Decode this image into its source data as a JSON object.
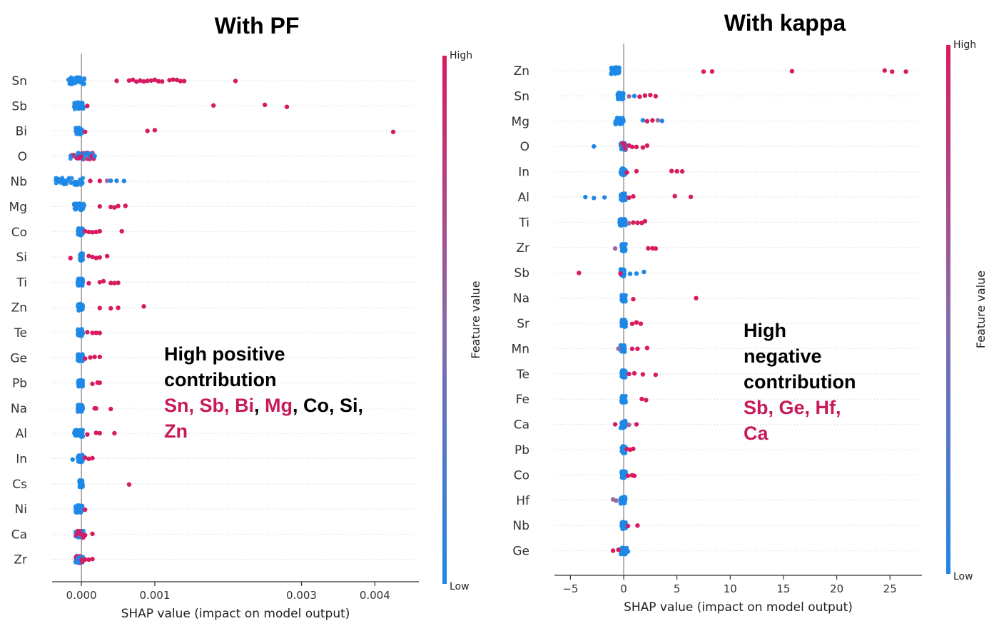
{
  "colors": {
    "low": "#1e88e5",
    "high": "#d81b60",
    "mid": "#9a6a9e",
    "axis": "#333333",
    "zero_line": "#999999",
    "grid": "#cccccc",
    "highlight": "#c8195a"
  },
  "panels": [
    {
      "title": "With PF",
      "annotation": {
        "line1": "High positive",
        "line2": "contribution",
        "hl1": "Sn, Sb, Bi",
        "sep1": ", ",
        "hl2": "Mg",
        "plain": ", Co, Si,",
        "hl3": "Zn"
      }
    },
    {
      "title": "With kappa",
      "annotation": {
        "line1": "High",
        "line2": "negative",
        "line3": "contribution",
        "hl1": "Sb, Ge, Hf,",
        "hl2": "Ca"
      }
    }
  ],
  "chart_data": [
    {
      "type": "scatter",
      "subtype": "shap-beeswarm",
      "title": "With PF",
      "xlabel": "SHAP value (impact on model output)",
      "colorbar_label": "Feature value",
      "colorbar_high": "High",
      "colorbar_low": "Low",
      "xlim": [
        -0.0004,
        0.0046
      ],
      "xticks": [
        0.0,
        0.001,
        0.003,
        0.004
      ],
      "xtick_labels": [
        "0.000",
        "0.001",
        "0.003",
        "0.004"
      ],
      "features": [
        "Sn",
        "Sb",
        "Bi",
        "O",
        "Nb",
        "Mg",
        "Co",
        "Si",
        "Ti",
        "Zn",
        "Te",
        "Ge",
        "Pb",
        "Na",
        "Al",
        "In",
        "Cs",
        "Ni",
        "Ca",
        "Zr"
      ],
      "spread": [
        [
          -0.00018,
          5e-05
        ],
        [
          -0.0001,
          3e-05
        ],
        [
          -8e-05,
          1e-05
        ],
        [
          -0.00015,
          0.00018
        ],
        [
          -0.00035,
          2e-05
        ],
        [
          -0.0001,
          4e-05
        ],
        [
          -5e-05,
          2e-05
        ],
        [
          -2e-05,
          2e-05
        ],
        [
          -5e-05,
          2e-05
        ],
        [
          -5e-05,
          2e-05
        ],
        [
          -5e-05,
          2e-05
        ],
        [
          -5e-05,
          2e-05
        ],
        [
          -5e-05,
          2e-05
        ],
        [
          -5e-05,
          2e-05
        ],
        [
          -0.0001,
          3e-05
        ],
        [
          -5e-05,
          2e-05
        ],
        [
          -3e-05,
          2e-05
        ],
        [
          -8e-05,
          2e-05
        ],
        [
          -8e-05,
          3e-05
        ],
        [
          -8e-05,
          2e-05
        ]
      ],
      "spread_color": [
        "low",
        "low",
        "low",
        "mixed",
        "low",
        "low",
        "low",
        "low",
        "low",
        "low",
        "low",
        "low",
        "low",
        "low",
        "low",
        "low",
        "low",
        "low",
        "mixed",
        "mixed"
      ],
      "outliers": [
        [
          [
            0.00048,
            "high"
          ],
          [
            0.00065,
            "high"
          ],
          [
            0.0007,
            "high"
          ],
          [
            0.00075,
            "high"
          ],
          [
            0.0008,
            "high"
          ],
          [
            0.00085,
            "high"
          ],
          [
            0.0009,
            "high"
          ],
          [
            0.00095,
            "high"
          ],
          [
            0.001,
            "high"
          ],
          [
            0.00105,
            "high"
          ],
          [
            0.0011,
            "high"
          ],
          [
            0.0012,
            "high"
          ],
          [
            0.00125,
            "high"
          ],
          [
            0.0013,
            "high"
          ],
          [
            0.00135,
            "high"
          ],
          [
            0.0014,
            "high"
          ],
          [
            0.0021,
            "high"
          ]
        ],
        [
          [
            8e-05,
            "high"
          ],
          [
            0.0018,
            "high"
          ],
          [
            0.0025,
            "high"
          ],
          [
            0.0028,
            "high"
          ]
        ],
        [
          [
            5e-05,
            "high"
          ],
          [
            0.0009,
            "high"
          ],
          [
            0.001,
            "high"
          ],
          [
            0.00425,
            "high"
          ]
        ],
        [
          [
            0.00014,
            "high"
          ],
          [
            0.00018,
            "low"
          ]
        ],
        [
          [
            0.00012,
            "high"
          ],
          [
            0.00025,
            "high"
          ],
          [
            0.00035,
            "mid"
          ],
          [
            0.0004,
            "low"
          ],
          [
            0.00048,
            "low"
          ],
          [
            0.00058,
            "low"
          ]
        ],
        [
          [
            0.00025,
            "high"
          ],
          [
            0.0004,
            "high"
          ],
          [
            0.00045,
            "high"
          ],
          [
            0.0005,
            "high"
          ],
          [
            0.0006,
            "high"
          ]
        ],
        [
          [
            5e-05,
            "high"
          ],
          [
            0.0001,
            "high"
          ],
          [
            0.00015,
            "high"
          ],
          [
            0.0002,
            "high"
          ],
          [
            0.00025,
            "high"
          ],
          [
            0.00055,
            "high"
          ]
        ],
        [
          [
            -0.00015,
            "high"
          ],
          [
            0.0001,
            "high"
          ],
          [
            0.00015,
            "high"
          ],
          [
            0.0002,
            "high"
          ],
          [
            0.00025,
            "high"
          ],
          [
            0.00035,
            "high"
          ]
        ],
        [
          [
            0.0001,
            "high"
          ],
          [
            0.00025,
            "high"
          ],
          [
            0.0003,
            "high"
          ],
          [
            0.0004,
            "high"
          ],
          [
            0.00045,
            "high"
          ],
          [
            0.0005,
            "high"
          ]
        ],
        [
          [
            0.00025,
            "high"
          ],
          [
            0.0004,
            "high"
          ],
          [
            0.0005,
            "high"
          ],
          [
            0.00085,
            "high"
          ]
        ],
        [
          [
            8e-05,
            "high"
          ],
          [
            0.00015,
            "high"
          ],
          [
            0.0002,
            "high"
          ],
          [
            0.00025,
            "high"
          ]
        ],
        [
          [
            5e-05,
            "high"
          ],
          [
            0.00012,
            "high"
          ],
          [
            0.00018,
            "high"
          ],
          [
            0.00025,
            "high"
          ]
        ],
        [
          [
            0.00015,
            "high"
          ],
          [
            0.00022,
            "high"
          ],
          [
            0.00025,
            "high"
          ]
        ],
        [
          [
            0.00018,
            "high"
          ],
          [
            0.0002,
            "high"
          ],
          [
            0.0004,
            "high"
          ]
        ],
        [
          [
            8e-05,
            "high"
          ],
          [
            0.0002,
            "high"
          ],
          [
            0.00025,
            "high"
          ],
          [
            0.00045,
            "high"
          ]
        ],
        [
          [
            -0.00012,
            "low"
          ],
          [
            5e-05,
            "high"
          ],
          [
            0.0001,
            "high"
          ],
          [
            0.00015,
            "high"
          ]
        ],
        [
          [
            0.00065,
            "high"
          ]
        ],
        [
          [
            5e-05,
            "high"
          ]
        ],
        [
          [
            5e-05,
            "high"
          ],
          [
            0.00015,
            "high"
          ]
        ],
        [
          [
            5e-05,
            "high"
          ],
          [
            0.0001,
            "high"
          ],
          [
            0.00015,
            "high"
          ]
        ]
      ]
    },
    {
      "type": "scatter",
      "subtype": "shap-beeswarm",
      "title": "With kappa",
      "xlabel": "SHAP value (impact on model output)",
      "colorbar_label": "Feature value",
      "colorbar_high": "High",
      "colorbar_low": "Low",
      "xlim": [
        -6.5,
        28
      ],
      "xticks": [
        -5,
        0,
        5,
        10,
        15,
        20,
        25
      ],
      "xtick_labels": [
        "−5",
        "0",
        "5",
        "10",
        "15",
        "20",
        "25"
      ],
      "features": [
        "Zn",
        "Sn",
        "Mg",
        "O",
        "In",
        "Al",
        "Ti",
        "Zr",
        "Sb",
        "Na",
        "Sr",
        "Mn",
        "Te",
        "Fe",
        "Ca",
        "Pb",
        "Co",
        "Hf",
        "Nb",
        "Ge"
      ],
      "spread": [
        [
          -1.2,
          -0.4
        ],
        [
          -0.6,
          0.0
        ],
        [
          -0.8,
          0.0
        ],
        [
          -0.3,
          0.2
        ],
        [
          -0.3,
          0.2
        ],
        [
          -0.3,
          0.2
        ],
        [
          -0.4,
          0.2
        ],
        [
          -0.2,
          0.2
        ],
        [
          -0.3,
          0.1
        ],
        [
          -0.2,
          0.2
        ],
        [
          -0.2,
          0.2
        ],
        [
          -0.3,
          0.1
        ],
        [
          -0.2,
          0.2
        ],
        [
          -0.2,
          0.2
        ],
        [
          -0.3,
          0.2
        ],
        [
          -0.2,
          0.2
        ],
        [
          -0.2,
          0.2
        ],
        [
          -0.3,
          0.2
        ],
        [
          -0.2,
          0.2
        ],
        [
          -0.3,
          0.3
        ]
      ],
      "spread_color": [
        "low",
        "low",
        "low",
        "mixed",
        "low",
        "low",
        "low",
        "low",
        "low",
        "low",
        "low",
        "low",
        "low",
        "low",
        "low",
        "low",
        "low",
        "low",
        "low",
        "low"
      ],
      "outliers": [
        [
          [
            7.5,
            "high"
          ],
          [
            8.3,
            "high"
          ],
          [
            15.8,
            "high"
          ],
          [
            24.5,
            "high"
          ],
          [
            25.2,
            "high"
          ],
          [
            26.5,
            "high"
          ]
        ],
        [
          [
            0.5,
            "mid"
          ],
          [
            1.0,
            "low"
          ],
          [
            1.5,
            "high"
          ],
          [
            2.0,
            "high"
          ],
          [
            2.5,
            "high"
          ],
          [
            3.0,
            "high"
          ]
        ],
        [
          [
            1.8,
            "low"
          ],
          [
            2.2,
            "high"
          ],
          [
            2.7,
            "high"
          ],
          [
            3.2,
            "mixed"
          ],
          [
            3.6,
            "low"
          ]
        ],
        [
          [
            -2.8,
            "low"
          ],
          [
            0.5,
            "high"
          ],
          [
            0.8,
            "high"
          ],
          [
            1.2,
            "high"
          ],
          [
            1.8,
            "high"
          ],
          [
            2.2,
            "high"
          ]
        ],
        [
          [
            0.3,
            "high"
          ],
          [
            1.2,
            "high"
          ],
          [
            4.5,
            "high"
          ],
          [
            5.0,
            "high"
          ],
          [
            5.5,
            "high"
          ]
        ],
        [
          [
            -3.6,
            "low"
          ],
          [
            -2.8,
            "low"
          ],
          [
            -1.8,
            "low"
          ],
          [
            0.5,
            "high"
          ],
          [
            0.9,
            "high"
          ],
          [
            4.8,
            "high"
          ],
          [
            6.3,
            "high"
          ]
        ],
        [
          [
            0.5,
            "mid"
          ],
          [
            0.9,
            "high"
          ],
          [
            1.3,
            "high"
          ],
          [
            1.7,
            "high"
          ],
          [
            2.0,
            "high"
          ]
        ],
        [
          [
            -0.8,
            "mid"
          ],
          [
            2.3,
            "high"
          ],
          [
            2.7,
            "high"
          ],
          [
            3.0,
            "high"
          ]
        ],
        [
          [
            -4.2,
            "high"
          ],
          [
            -0.3,
            "high"
          ],
          [
            0.6,
            "low"
          ],
          [
            1.2,
            "low"
          ],
          [
            1.9,
            "low"
          ]
        ],
        [
          [
            0.9,
            "high"
          ],
          [
            6.8,
            "high"
          ]
        ],
        [
          [
            0.8,
            "high"
          ],
          [
            1.2,
            "high"
          ],
          [
            1.6,
            "high"
          ]
        ],
        [
          [
            -0.5,
            "mid"
          ],
          [
            0.8,
            "high"
          ],
          [
            1.3,
            "high"
          ],
          [
            2.2,
            "high"
          ]
        ],
        [
          [
            0.5,
            "high"
          ],
          [
            1.0,
            "high"
          ],
          [
            1.8,
            "high"
          ],
          [
            3.0,
            "high"
          ]
        ],
        [
          [
            1.7,
            "high"
          ],
          [
            2.1,
            "high"
          ]
        ],
        [
          [
            -0.8,
            "high"
          ],
          [
            0.5,
            "mid"
          ],
          [
            1.2,
            "high"
          ]
        ],
        [
          [
            0.3,
            "high"
          ],
          [
            0.6,
            "high"
          ],
          [
            0.9,
            "high"
          ]
        ],
        [
          [
            0.4,
            "high"
          ],
          [
            0.8,
            "high"
          ],
          [
            1.0,
            "high"
          ]
        ],
        [
          [
            -1.0,
            "mid"
          ],
          [
            -0.7,
            "mid"
          ]
        ],
        [
          [
            0.4,
            "high"
          ],
          [
            1.3,
            "high"
          ]
        ],
        [
          [
            -1.0,
            "high"
          ],
          [
            -0.5,
            "high"
          ],
          [
            0.4,
            "low"
          ]
        ]
      ]
    }
  ]
}
